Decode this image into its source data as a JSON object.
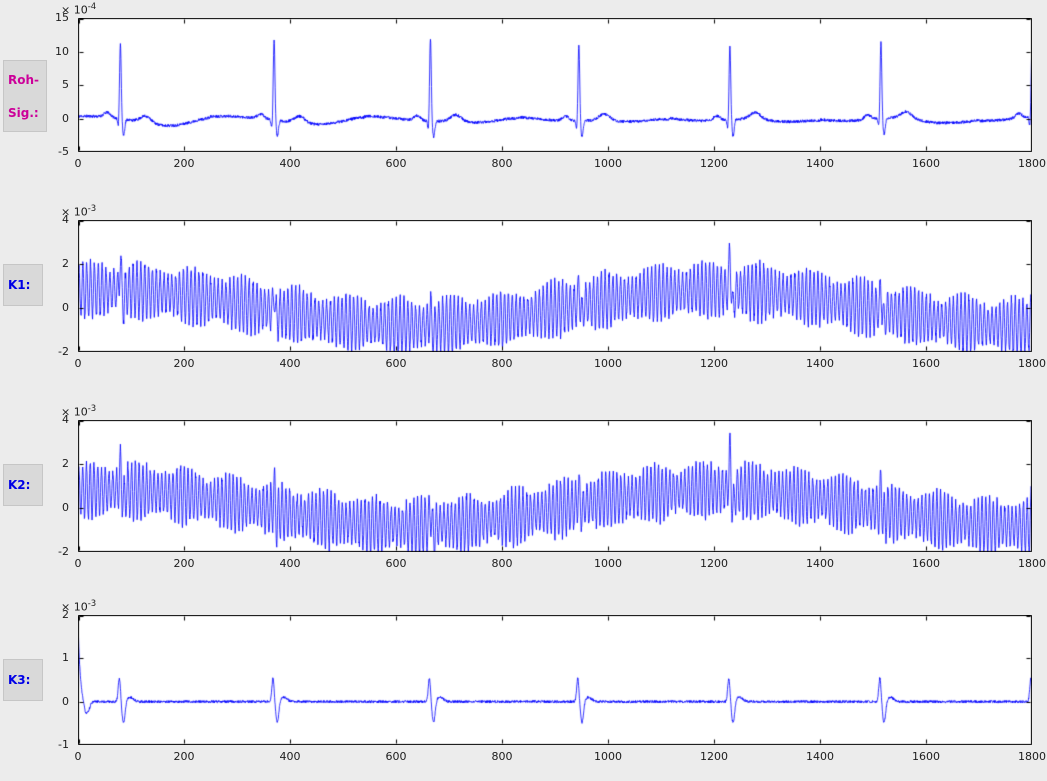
{
  "figure": {
    "bg_color": "#ececec",
    "plot_bg": "#ffffff",
    "line_color": "#0000ff",
    "axis_color": "#000000",
    "tick_color": "#1c1c1c",
    "label_box_bg": "#d9d9d9",
    "label_box_border": "#c6c6c6"
  },
  "labels": {
    "roh_line1": "Roh-",
    "roh_line2": "Sig.:",
    "roh_color": "#cc0099",
    "k1": "K1:",
    "k2": "K2:",
    "k3": "K3:",
    "k_color": "#0000e6"
  },
  "chart_data": [
    {
      "type": "line",
      "id": "roh-signal",
      "row_label": "Roh-Sig.:",
      "title": "",
      "xlabel": "",
      "ylabel": "",
      "exponent_prefix": "× 10",
      "exponent": "-4",
      "unit_scale": "1e-4",
      "grid": false,
      "xlim": [
        0,
        1800
      ],
      "ylim": [
        -5,
        15
      ],
      "xticks": [
        0,
        200,
        400,
        600,
        800,
        1000,
        1200,
        1400,
        1600,
        1800
      ],
      "yticks": [
        -5,
        0,
        5,
        10,
        15
      ],
      "line_color": "#0000ff",
      "signal": {
        "kind": "ecg",
        "seed": 11,
        "noise": 0.22,
        "wander_amp": 0.35,
        "wander_period": 260,
        "beats": [
          80,
          370,
          665,
          945,
          1230,
          1515,
          1800
        ],
        "r_amp": [
          11.3,
          12.2,
          12.4,
          11.4,
          11.0,
          11.6,
          11.0
        ],
        "p_amp": 0.7,
        "q_amp": -1.3,
        "s_amp": -2.4,
        "t_amp": 1.0,
        "dip_amp": -0.8
      }
    },
    {
      "type": "line",
      "id": "k1",
      "row_label": "K1:",
      "title": "",
      "xlabel": "",
      "ylabel": "",
      "exponent_prefix": "× 10",
      "exponent": "-3",
      "unit_scale": "1e-3",
      "grid": false,
      "xlim": [
        0,
        1800
      ],
      "ylim": [
        -2,
        4
      ],
      "xticks": [
        0,
        200,
        400,
        600,
        800,
        1000,
        1200,
        1400,
        1600,
        1800
      ],
      "yticks": [
        -2,
        0,
        2,
        4
      ],
      "line_color": "#0000ff",
      "signal": {
        "kind": "osc",
        "seed": 21,
        "noise": 0.06,
        "carrier_amp": 1.05,
        "carrier_period": 7.3,
        "amp_mod_depth": 0.22,
        "amp_mod_period": 97,
        "wander_amp": 0.82,
        "wander_period": 1150,
        "wander_phase": 55,
        "beats": [
          80,
          370,
          665,
          945,
          1230,
          1515,
          1800
        ],
        "spike_amp": [
          1.3,
          0.8,
          0.7,
          0.9,
          1.7,
          0.9,
          0.8
        ]
      }
    },
    {
      "type": "line",
      "id": "k2",
      "row_label": "K2:",
      "title": "",
      "xlabel": "",
      "ylabel": "",
      "exponent_prefix": "× 10",
      "exponent": "-3",
      "unit_scale": "1e-3",
      "grid": false,
      "xlim": [
        0,
        1800
      ],
      "ylim": [
        -2,
        4
      ],
      "xticks": [
        0,
        200,
        400,
        600,
        800,
        1000,
        1200,
        1400,
        1600,
        1800
      ],
      "yticks": [
        -2,
        0,
        2,
        4
      ],
      "line_color": "#0000ff",
      "signal": {
        "kind": "osc",
        "seed": 22,
        "noise": 0.06,
        "carrier_amp": 1.05,
        "carrier_period": 7.1,
        "amp_mod_depth": 0.22,
        "amp_mod_period": 89,
        "wander_amp": 0.82,
        "wander_period": 1150,
        "wander_phase": 55,
        "beats": [
          80,
          370,
          665,
          945,
          1230,
          1515,
          1800
        ],
        "spike_amp": [
          1.1,
          0.9,
          0.8,
          0.8,
          1.8,
          0.9,
          0.8
        ]
      }
    },
    {
      "type": "line",
      "id": "k3",
      "row_label": "K3:",
      "title": "",
      "xlabel": "",
      "ylabel": "",
      "exponent_prefix": "× 10",
      "exponent": "-3",
      "unit_scale": "1e-3",
      "grid": false,
      "xlim": [
        0,
        1800
      ],
      "ylim": [
        -1,
        2
      ],
      "xticks": [
        0,
        200,
        400,
        600,
        800,
        1000,
        1200,
        1400,
        1600,
        1800
      ],
      "yticks": [
        -1,
        0,
        1,
        2
      ],
      "line_color": "#0000ff",
      "signal": {
        "kind": "deriv",
        "seed": 31,
        "noise": 0.03,
        "initial_amp": 1.9,
        "initial_tau": 4,
        "beats": [
          80,
          370,
          665,
          945,
          1230,
          1515,
          1800
        ],
        "pos_amp": 0.55,
        "neg_amp": 0.5
      }
    }
  ]
}
